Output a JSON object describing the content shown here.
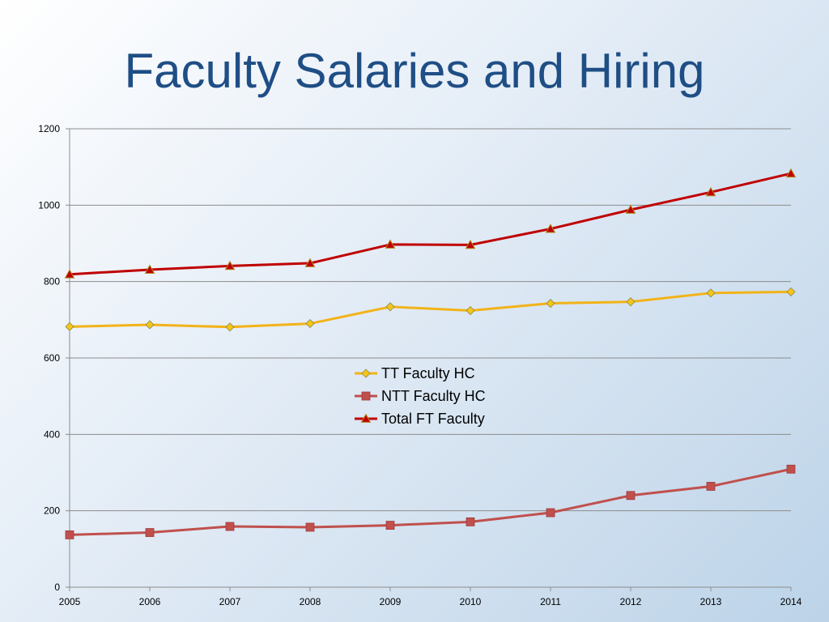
{
  "slide": {
    "title": "Faculty Salaries and Hiring"
  },
  "chart_data": {
    "type": "line",
    "title": "",
    "xlabel": "",
    "ylabel": "",
    "x": [
      "2005",
      "2006",
      "2007",
      "2008",
      "2009",
      "2010",
      "2011",
      "2012",
      "2013",
      "2014"
    ],
    "ylim": [
      0,
      1200
    ],
    "yticks": [
      "0",
      "200",
      "400",
      "600",
      "800",
      "1000",
      "1200"
    ],
    "grid": true,
    "legend_position": "center",
    "series": [
      {
        "name": "TT Faculty HC",
        "color": "#f2b318",
        "marker": "diamond",
        "values": [
          682,
          687,
          681,
          690,
          734,
          724,
          743,
          747,
          770,
          773
        ]
      },
      {
        "name": "NTT Faculty HC",
        "color": "#c0504d",
        "marker": "square",
        "values": [
          137,
          143,
          159,
          157,
          162,
          171,
          195,
          240,
          264,
          309
        ]
      },
      {
        "name": "Total FT Faculty",
        "color": "#c00000",
        "marker": "triangle",
        "values": [
          819,
          831,
          841,
          848,
          897,
          896,
          938,
          988,
          1034,
          1083
        ]
      }
    ]
  }
}
